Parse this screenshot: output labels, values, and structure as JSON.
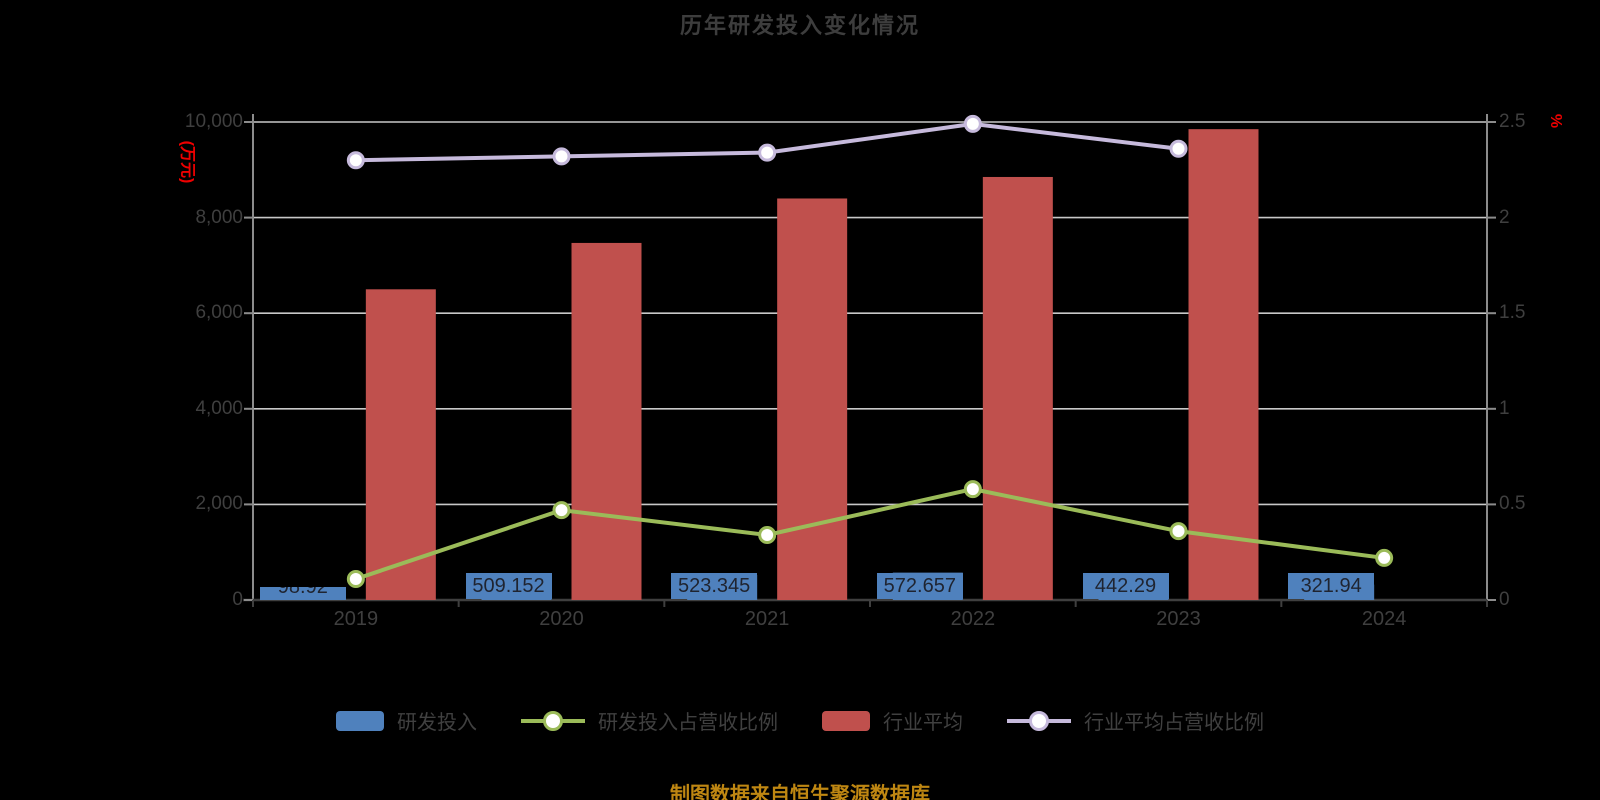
{
  "title": "历年研发投入变化情况",
  "source_note": "制图数据来自恒生聚源数据库",
  "left_axis": {
    "unit": "(万元)",
    "ticks": [
      "10,000",
      "8,000",
      "6,000",
      "4,000",
      "2,000",
      "0"
    ]
  },
  "right_axis": {
    "unit": "%",
    "ticks": [
      "2.5",
      "2",
      "1.5",
      "1",
      "0.5",
      "0"
    ]
  },
  "chart_data": {
    "type": "bar",
    "subtype": "grouped-bar-with-overlaid-lines",
    "categories": [
      "2019",
      "2020",
      "2021",
      "2022",
      "2023",
      "2024"
    ],
    "ylim_left": [
      0,
      10000
    ],
    "ylim_right": [
      0,
      2.5
    ],
    "grid": true,
    "legend_position": "bottom",
    "series": [
      {
        "name": "研发投入",
        "type": "bar",
        "axis": "left",
        "color": "#4f81bd",
        "values": [
          98.92,
          509.152,
          523.345,
          572.657,
          442.29,
          321.94
        ],
        "labels": [
          "98.92",
          "509.152",
          "523.345",
          "572.657",
          "442.29",
          "321.94"
        ]
      },
      {
        "name": "研发投入占营收比例",
        "type": "line",
        "axis": "right",
        "color": "#9bbb59",
        "values": [
          0.11,
          0.47,
          0.34,
          0.58,
          0.36,
          0.22
        ]
      },
      {
        "name": "行业平均",
        "type": "bar",
        "axis": "left",
        "color": "#c0504d",
        "values": [
          6500,
          7470,
          8400,
          8850,
          9850,
          null
        ]
      },
      {
        "name": "行业平均占营收比例",
        "type": "line",
        "axis": "right",
        "color": "#c6badc",
        "values": [
          2.3,
          2.32,
          2.34,
          2.49,
          2.36,
          null
        ]
      }
    ]
  },
  "legend": {
    "items": [
      {
        "label": "研发投入",
        "swatch": "bar",
        "color": "#4f81bd"
      },
      {
        "label": "研发投入占营收比例",
        "swatch": "line-marker",
        "color": "#9bbb59"
      },
      {
        "label": "行业平均",
        "swatch": "bar",
        "color": "#c0504d"
      },
      {
        "label": "行业平均占营收比例",
        "swatch": "line-marker",
        "color": "#c6badc"
      }
    ]
  },
  "colors": {
    "background": "#000000",
    "gridline": "#c8c8c8",
    "axis_spine": "#8c8c8c",
    "x_axis_line": "#3f3f3f",
    "tick_text": "#3f3f3f",
    "title_text": "#3d3d3d",
    "axis_unit_text": "#ee0000",
    "caption_text": "#bf8712",
    "bar_label_text": "#1f2430"
  }
}
